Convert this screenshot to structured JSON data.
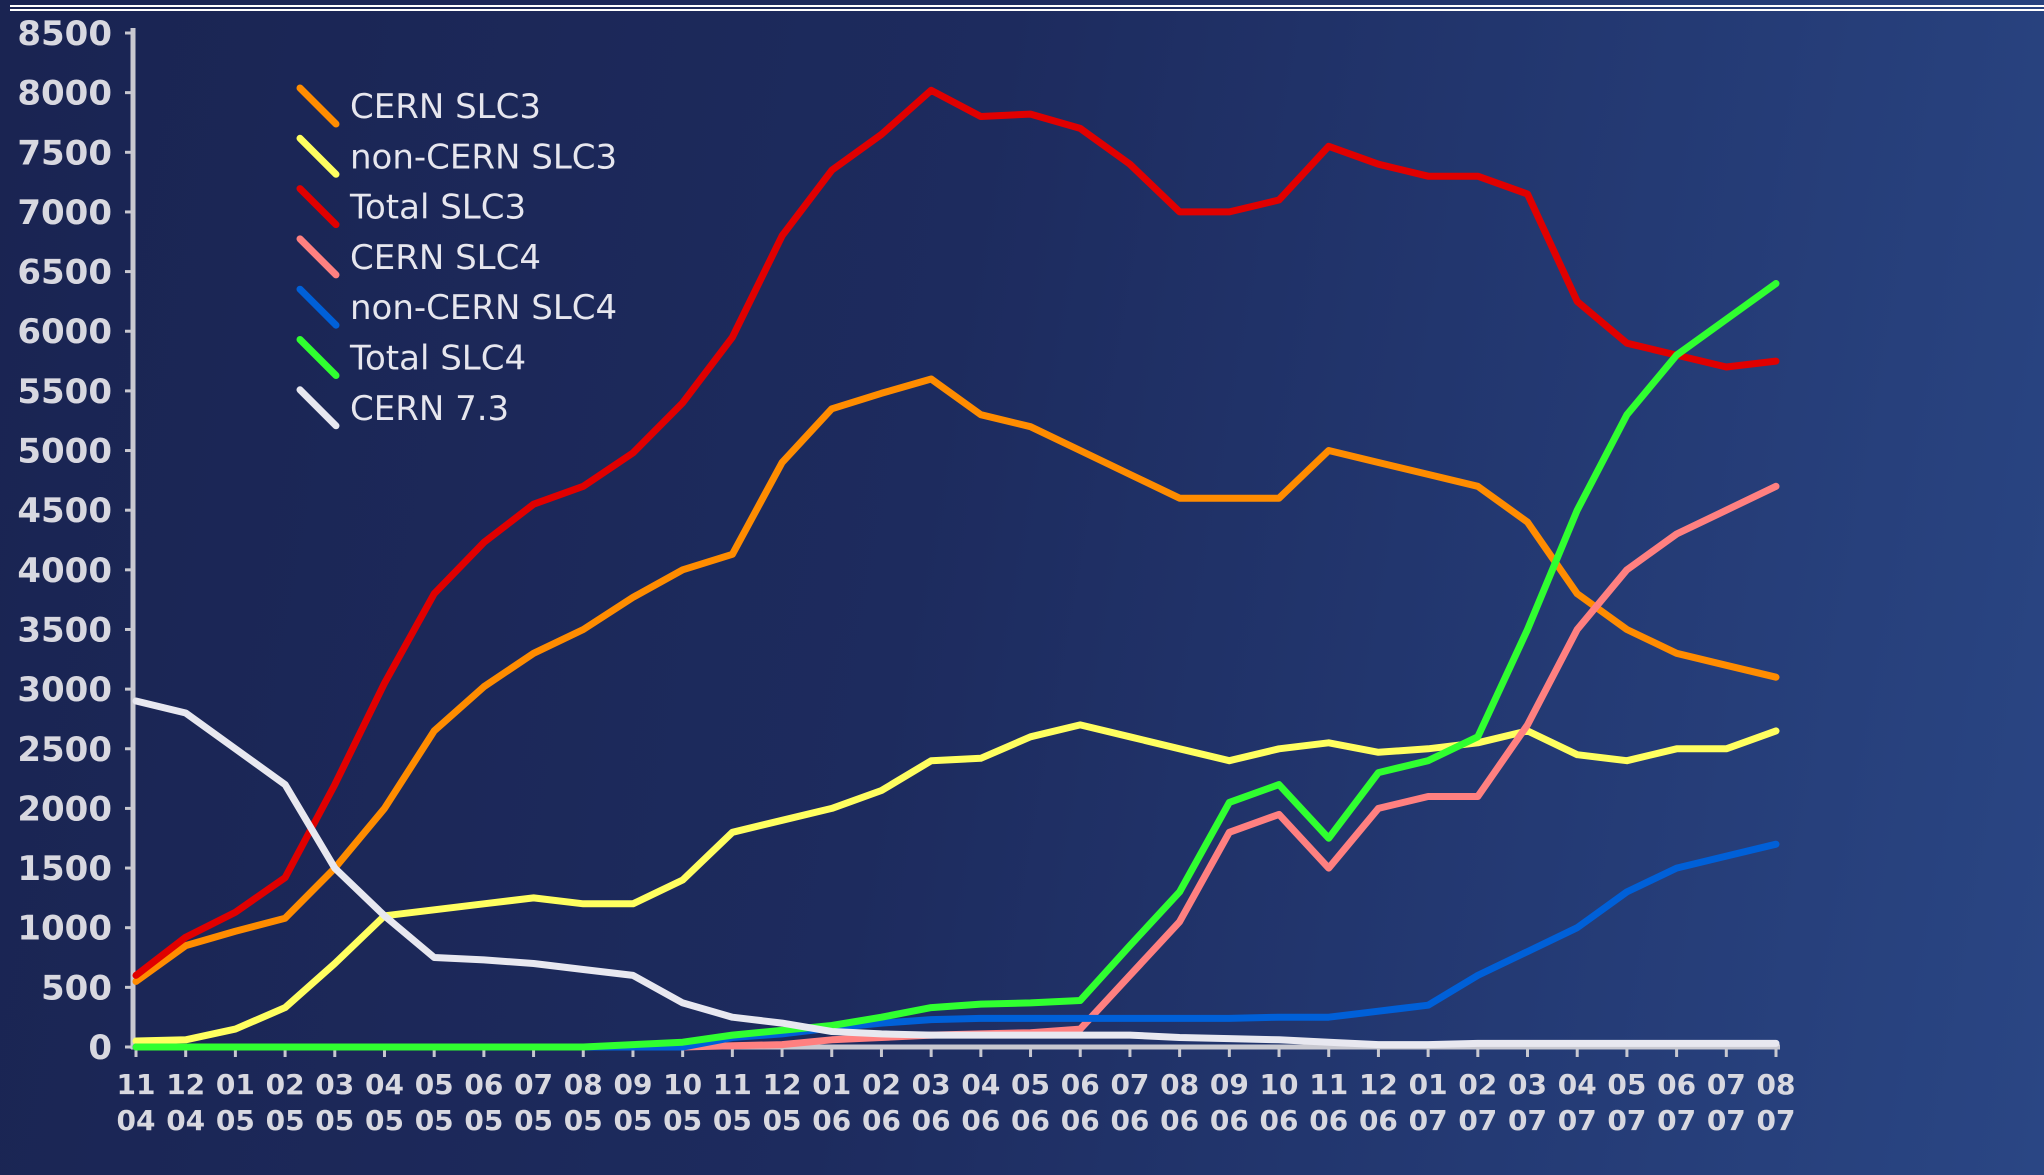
{
  "chart_data": {
    "type": "line",
    "title": "",
    "xlabel": "",
    "ylabel": "",
    "ylim": [
      0,
      8500
    ],
    "y_ticks": [
      "0",
      "500",
      "1000",
      "1500",
      "2000",
      "2500",
      "3000",
      "3500",
      "4000",
      "4500",
      "5000",
      "5500",
      "6000",
      "6500",
      "7000",
      "7500",
      "8000",
      "8500"
    ],
    "x": [
      [
        "11",
        "04"
      ],
      [
        "12",
        "04"
      ],
      [
        "01",
        "05"
      ],
      [
        "02",
        "05"
      ],
      [
        "03",
        "05"
      ],
      [
        "04",
        "05"
      ],
      [
        "05",
        "05"
      ],
      [
        "06",
        "05"
      ],
      [
        "07",
        "05"
      ],
      [
        "08",
        "05"
      ],
      [
        "09",
        "05"
      ],
      [
        "10",
        "05"
      ],
      [
        "11",
        "05"
      ],
      [
        "12",
        "05"
      ],
      [
        "01",
        "06"
      ],
      [
        "02",
        "06"
      ],
      [
        "03",
        "06"
      ],
      [
        "04",
        "06"
      ],
      [
        "05",
        "06"
      ],
      [
        "06",
        "06"
      ],
      [
        "07",
        "06"
      ],
      [
        "08",
        "06"
      ],
      [
        "09",
        "06"
      ],
      [
        "10",
        "06"
      ],
      [
        "11",
        "06"
      ],
      [
        "12",
        "06"
      ],
      [
        "01",
        "07"
      ],
      [
        "02",
        "07"
      ],
      [
        "03",
        "07"
      ],
      [
        "04",
        "07"
      ],
      [
        "05",
        "07"
      ],
      [
        "06",
        "07"
      ],
      [
        "07",
        "07"
      ],
      [
        "08",
        "07"
      ]
    ],
    "legend_position": "top-left",
    "grid": false,
    "series": [
      {
        "name": "CERN SLC3",
        "color": "#ff8c00",
        "values": [
          550,
          850,
          970,
          1080,
          1500,
          2000,
          2650,
          3020,
          3300,
          3500,
          3770,
          4000,
          4130,
          4900,
          5350,
          5480,
          5600,
          5300,
          5200,
          5000,
          4800,
          4600,
          4600,
          4600,
          5000,
          4900,
          4800,
          4700,
          4400,
          3800,
          3500,
          3300,
          3200,
          3100
        ]
      },
      {
        "name": "non-CERN SLC3",
        "color": "#ffff60",
        "values": [
          50,
          60,
          150,
          330,
          700,
          1100,
          1150,
          1200,
          1250,
          1200,
          1200,
          1400,
          1800,
          1900,
          2000,
          2150,
          2400,
          2420,
          2600,
          2700,
          2600,
          2500,
          2400,
          2500,
          2550,
          2470,
          2500,
          2550,
          2650,
          2450,
          2400,
          2500,
          2500,
          2650
        ]
      },
      {
        "name": "Total SLC3",
        "color": "#e00000",
        "values": [
          600,
          920,
          1130,
          1420,
          2200,
          3050,
          3800,
          4230,
          4550,
          4700,
          4980,
          5400,
          5950,
          6800,
          7350,
          7650,
          8020,
          7800,
          7820,
          7700,
          7400,
          7000,
          7000,
          7100,
          7550,
          7400,
          7300,
          7300,
          7150,
          6250,
          5900,
          5800,
          5700,
          5750
        ]
      },
      {
        "name": "CERN SLC4",
        "color": "#ff8080",
        "values": [
          0,
          0,
          0,
          0,
          0,
          0,
          0,
          0,
          0,
          0,
          0,
          0,
          10,
          20,
          60,
          80,
          100,
          110,
          120,
          150,
          600,
          1050,
          1800,
          1950,
          1500,
          2000,
          2100,
          2100,
          2700,
          3500,
          4000,
          4300,
          4500,
          4700
        ]
      },
      {
        "name": "non-CERN SLC4",
        "color": "#0060d8",
        "values": [
          0,
          0,
          0,
          0,
          0,
          0,
          0,
          0,
          0,
          0,
          0,
          0,
          80,
          110,
          160,
          200,
          230,
          240,
          240,
          240,
          240,
          240,
          240,
          250,
          250,
          300,
          350,
          600,
          800,
          1000,
          1300,
          1500,
          1600,
          1700
        ]
      },
      {
        "name": "Total SLC4",
        "color": "#30ff30",
        "values": [
          0,
          0,
          0,
          0,
          0,
          0,
          0,
          0,
          0,
          0,
          20,
          40,
          100,
          140,
          180,
          250,
          330,
          360,
          370,
          390,
          850,
          1300,
          2050,
          2200,
          1750,
          2300,
          2400,
          2600,
          3500,
          4500,
          5300,
          5800,
          6100,
          6400
        ]
      },
      {
        "name": "CERN 7.3",
        "color": "#e8e8f0",
        "values": [
          2900,
          2800,
          2500,
          2200,
          1500,
          1100,
          750,
          730,
          700,
          650,
          600,
          370,
          250,
          200,
          130,
          110,
          100,
          100,
          100,
          100,
          100,
          80,
          70,
          60,
          40,
          20,
          20,
          30,
          30,
          30,
          30,
          30,
          30,
          30
        ]
      }
    ]
  }
}
